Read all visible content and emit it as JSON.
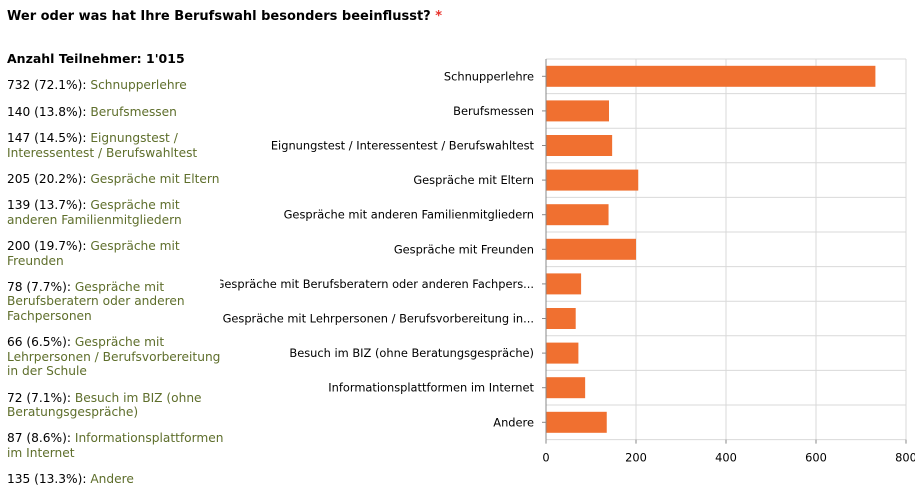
{
  "question": {
    "text": "Wer oder was hat Ihre Berufswahl besonders beeinflusst?",
    "required_marker": "*"
  },
  "summary": {
    "participants_label": "Anzahl Teilnehmer: 1'015",
    "rows": [
      {
        "count": "732 (72.1%):",
        "option": "Schnupperlehre"
      },
      {
        "count": "140 (13.8%):",
        "option": "Berufsmessen"
      },
      {
        "count": "147 (14.5%):",
        "option": "Eignungstest / Interessentest / Berufswahltest"
      },
      {
        "count": "205 (20.2%):",
        "option": "Gespräche mit Eltern"
      },
      {
        "count": "139 (13.7%):",
        "option": "Gespräche mit anderen Familienmitgliedern"
      },
      {
        "count": "200 (19.7%):",
        "option": "Gespräche mit Freunden"
      },
      {
        "count": "78 (7.7%):",
        "option": "Gespräche mit Berufsberatern oder anderen Fachpersonen"
      },
      {
        "count": "66 (6.5%):",
        "option": "Gespräche mit Lehrpersonen / Berufsvorbereitung in der Schule"
      },
      {
        "count": "72 (7.1%):",
        "option": "Besuch im BIZ (ohne Beratungsgespräche)"
      },
      {
        "count": "87 (8.6%):",
        "option": "Informationsplattformen im Internet"
      },
      {
        "count": "135 (13.3%):",
        "option": "Andere"
      }
    ]
  },
  "chart_data": {
    "type": "bar",
    "orientation": "horizontal",
    "categories": [
      "Schnupperlehre",
      "Berufsmessen",
      "Eignungstest / Interessentest / Berufswahltest",
      "Gespräche mit Eltern",
      "Gespräche mit anderen Familienmitgliedern",
      "Gespräche mit Freunden",
      "Gespräche mit Berufsberatern oder anderen Fachpers...",
      "Gespräche mit Lehrpersonen / Berufsvorbereitung in...",
      "Besuch im BIZ (ohne Beratungsgespräche)",
      "Informationsplattformen im Internet",
      "Andere"
    ],
    "values": [
      732,
      140,
      147,
      205,
      139,
      200,
      78,
      66,
      72,
      87,
      135
    ],
    "xlim": [
      0,
      800
    ],
    "xticks": [
      0,
      200,
      400,
      600,
      800
    ],
    "grid": true,
    "bar_color": "#f07030",
    "title": "",
    "xlabel": "",
    "ylabel": ""
  },
  "colors": {
    "option_text": "#5e6e2b",
    "required": "#e8312a",
    "bar": "#f07030",
    "grid": "#d9d9d9"
  }
}
